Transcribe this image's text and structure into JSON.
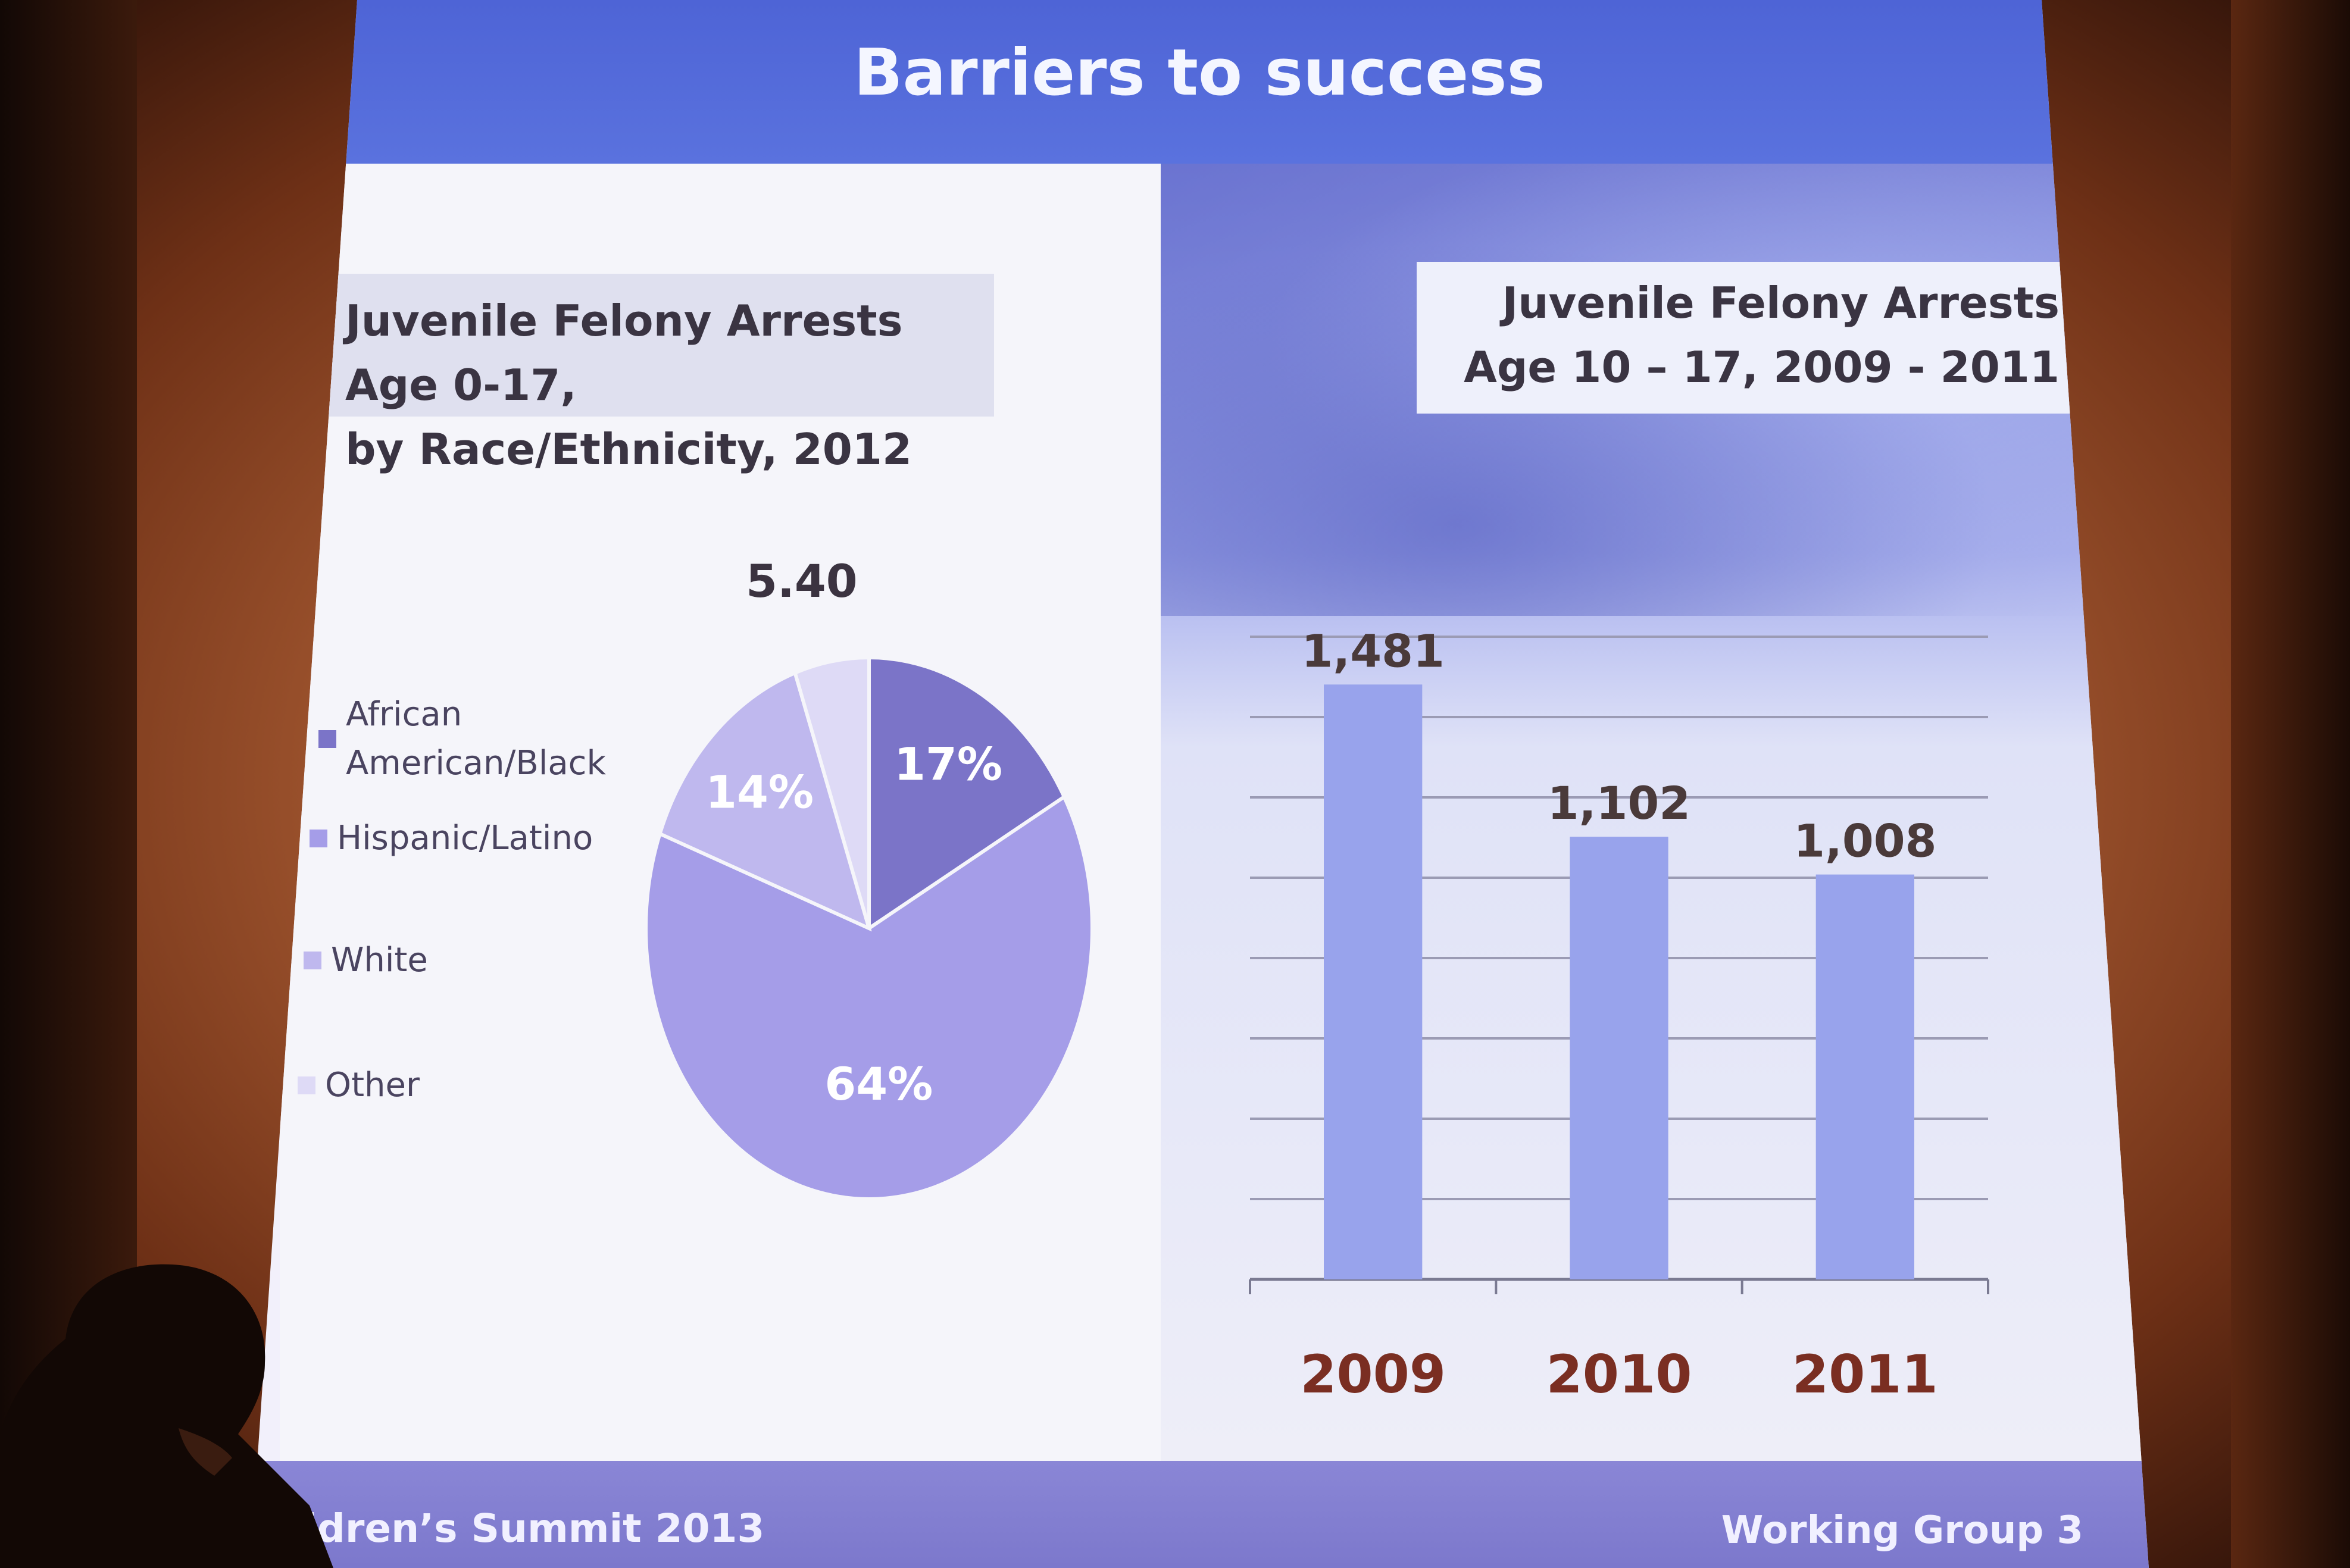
{
  "slide": {
    "title": "Barriers to success",
    "footer_left": "ldren’s Summit 2013",
    "footer_right": "Working Group 3"
  },
  "colors": {
    "title_bar": "#5068d8",
    "african_american": "#7b74c8",
    "hispanic": "#a59de8",
    "white": "#bfb8ee",
    "other": "#dedaf6",
    "bar": "#98a3ec",
    "bar_labels": "#4a3a3a",
    "year_labels": "#7a2e22"
  },
  "chart_data": [
    {
      "type": "pie",
      "title": "Juvenile Felony Arrests Age 0-17,\nby Race/Ethnicity, 2012",
      "legend_position": "left",
      "categories": [
        "African\nAmerican/Black",
        "Hispanic/Latino",
        "White",
        "Other"
      ],
      "values": [
        17,
        64,
        14,
        5.4
      ],
      "data_labels": [
        "17%",
        "64%",
        "14%",
        "5.40"
      ]
    },
    {
      "type": "bar",
      "title": "Juvenile Felony Arrests\nAge 10 – 17, 2009 - 2011",
      "categories": [
        "2009",
        "2010",
        "2011"
      ],
      "values": [
        1481,
        1102,
        1008
      ],
      "data_labels": [
        "1,481",
        "1,102",
        "1,008"
      ],
      "ylim": [
        0,
        1600
      ],
      "grid": true
    }
  ]
}
